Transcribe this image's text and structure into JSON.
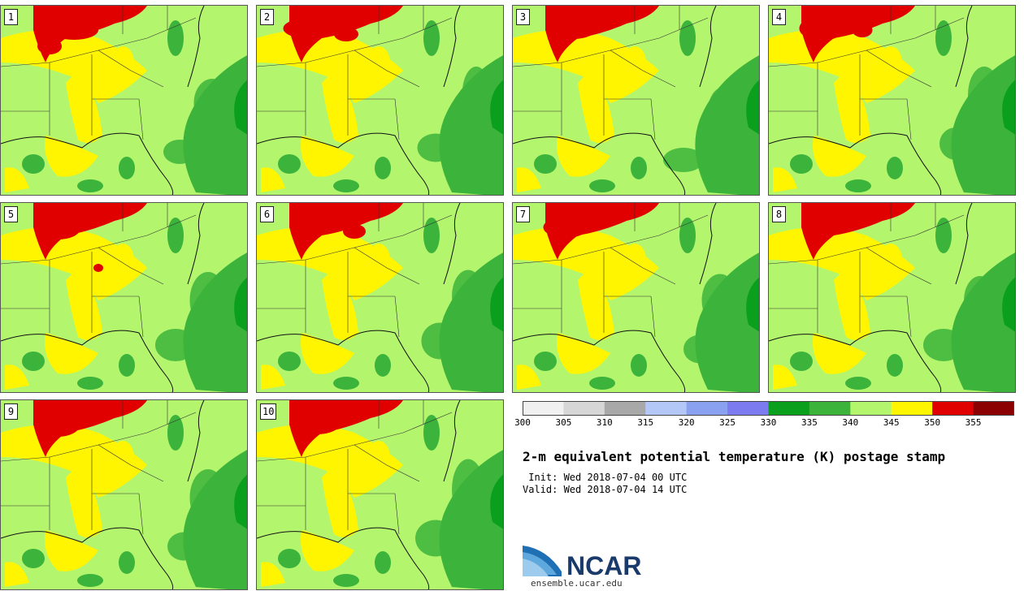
{
  "panels": [
    {
      "label": "1",
      "red": [
        [
          90,
          30,
          60,
          24
        ],
        [
          60,
          50,
          30,
          20
        ]
      ],
      "green": [
        [
          260,
          120,
          45,
          60
        ],
        [
          220,
          180,
          40,
          30
        ]
      ]
    },
    {
      "label": "2",
      "red": [
        [
          60,
          28,
          55,
          24
        ],
        [
          110,
          35,
          30,
          18
        ]
      ],
      "green": [
        [
          270,
          110,
          35,
          70
        ],
        [
          220,
          175,
          45,
          35
        ]
      ]
    },
    {
      "label": "3",
      "red": [
        [
          75,
          28,
          55,
          26
        ],
        [
          120,
          18,
          30,
          14
        ]
      ],
      "green": [
        [
          260,
          130,
          40,
          60
        ],
        [
          210,
          190,
          50,
          30
        ]
      ]
    },
    {
      "label": "4",
      "red": [
        [
          65,
          28,
          55,
          30
        ],
        [
          115,
          30,
          25,
          18
        ]
      ],
      "green": [
        [
          265,
          110,
          40,
          70
        ],
        [
          230,
          170,
          40,
          40
        ]
      ]
    },
    {
      "label": "5",
      "red": [
        [
          70,
          32,
          55,
          26
        ],
        [
          120,
          80,
          12,
          10
        ]
      ],
      "green": [
        [
          255,
          120,
          45,
          70
        ],
        [
          215,
          175,
          50,
          40
        ]
      ]
    },
    {
      "label": "6",
      "red": [
        [
          70,
          26,
          60,
          26
        ],
        [
          120,
          35,
          28,
          18
        ]
      ],
      "green": [
        [
          260,
          115,
          40,
          65
        ],
        [
          225,
          170,
          45,
          45
        ]
      ]
    },
    {
      "label": "7",
      "red": [
        [
          65,
          30,
          55,
          26
        ],
        [
          118,
          20,
          28,
          14
        ]
      ],
      "green": [
        [
          255,
          120,
          45,
          65
        ],
        [
          230,
          180,
          40,
          35
        ]
      ]
    },
    {
      "label": "8",
      "red": [
        [
          70,
          26,
          55,
          28
        ],
        [
          120,
          15,
          30,
          12
        ]
      ],
      "green": [
        [
          260,
          120,
          40,
          60
        ],
        [
          215,
          175,
          50,
          40
        ]
      ]
    },
    {
      "label": "9",
      "red": [
        [
          70,
          30,
          55,
          30
        ],
        [
          50,
          20,
          20,
          12
        ]
      ],
      "green": [
        [
          255,
          120,
          45,
          70
        ],
        [
          225,
          180,
          40,
          35
        ]
      ]
    },
    {
      "label": "10",
      "red": [
        [
          75,
          28,
          55,
          28
        ],
        [
          120,
          18,
          30,
          16
        ]
      ],
      "green": [
        [
          260,
          110,
          40,
          75
        ],
        [
          220,
          170,
          50,
          45
        ]
      ]
    }
  ],
  "colorbar": {
    "colors": [
      "#f0f0f0",
      "#d6d6d6",
      "#a8a8a8",
      "#b4c8f8",
      "#8aa0f0",
      "#7c7cf0",
      "#0aa01e",
      "#3cb43c",
      "#b4f56e",
      "#fff500",
      "#e00000",
      "#8b0000"
    ],
    "ticks": [
      "300",
      "305",
      "310",
      "315",
      "320",
      "325",
      "330",
      "335",
      "340",
      "345",
      "350",
      "355"
    ]
  },
  "title": "2-m equivalent potential temperature (K) postage stamp",
  "init": " Init: Wed 2018-07-04 00 UTC",
  "valid": "Valid: Wed 2018-07-04 14 UTC",
  "logo_text": "NCAR",
  "site": "ensemble.ucar.edu"
}
